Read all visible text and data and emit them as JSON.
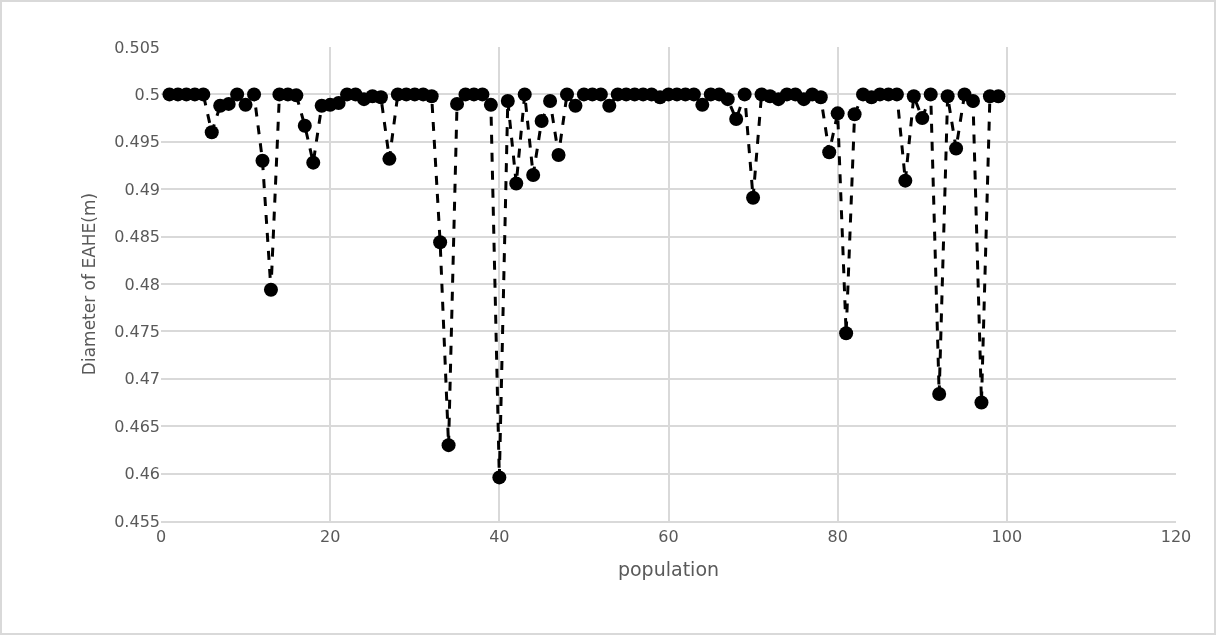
{
  "chart_data": {
    "type": "line",
    "xlabel": "population",
    "ylabel": "Diameter of EAHE(m)",
    "x": [
      1,
      2,
      3,
      4,
      5,
      6,
      7,
      8,
      9,
      10,
      11,
      12,
      13,
      14,
      15,
      16,
      17,
      18,
      19,
      20,
      21,
      22,
      23,
      24,
      25,
      26,
      27,
      28,
      29,
      30,
      31,
      32,
      33,
      34,
      35,
      36,
      37,
      38,
      39,
      40,
      41,
      42,
      43,
      44,
      45,
      46,
      47,
      48,
      49,
      50,
      51,
      52,
      53,
      54,
      55,
      56,
      57,
      58,
      59,
      60,
      61,
      62,
      63,
      64,
      65,
      66,
      67,
      68,
      69,
      70,
      71,
      72,
      73,
      74,
      75,
      76,
      77,
      78,
      79,
      80,
      81,
      82,
      83,
      84,
      85,
      86,
      87,
      88,
      89,
      90,
      91,
      92,
      93,
      94,
      95,
      96,
      97,
      98,
      99
    ],
    "series": [
      {
        "color": "#000000",
        "values": [
          0.5,
          0.5,
          0.5,
          0.5,
          0.5,
          0.496,
          0.4988,
          0.499,
          0.5,
          0.4989,
          0.5,
          0.493,
          0.4794,
          0.5,
          0.5,
          0.4999,
          0.4967,
          0.4928,
          0.4988,
          0.4989,
          0.4991,
          0.5,
          0.5,
          0.4995,
          0.4998,
          0.4997,
          0.4932,
          0.5,
          0.5,
          0.5,
          0.5,
          0.4998,
          0.4844,
          0.463,
          0.499,
          0.5,
          0.5,
          0.5,
          0.4989,
          0.4596,
          0.4993,
          0.4906,
          0.5,
          0.4915,
          0.4972,
          0.4993,
          0.4936,
          0.5,
          0.4988,
          0.5,
          0.5,
          0.5,
          0.4988,
          0.5,
          0.5,
          0.5,
          0.5,
          0.5,
          0.4997,
          0.5,
          0.5,
          0.5,
          0.5,
          0.4989,
          0.5,
          0.5,
          0.4995,
          0.4974,
          0.5,
          0.4891,
          0.5,
          0.4998,
          0.4995,
          0.5,
          0.5,
          0.4995,
          0.5,
          0.4997,
          0.4939,
          0.498,
          0.4748,
          0.4979,
          0.5,
          0.4997,
          0.5,
          0.5,
          0.5,
          0.4909,
          0.4998,
          0.4975,
          0.5,
          0.4684,
          0.4998,
          0.4943,
          0.5,
          0.4993,
          0.4675,
          0.4998,
          0.4998
        ]
      }
    ],
    "xlim": [
      0,
      120
    ],
    "xticks": [
      0,
      20,
      40,
      60,
      80,
      100,
      120
    ],
    "ylim": [
      0.455,
      0.505
    ],
    "yticks": [
      0.455,
      0.46,
      0.465,
      0.47,
      0.475,
      0.48,
      0.485,
      0.49,
      0.495,
      0.5,
      0.505
    ],
    "grid": true,
    "marker": "circle",
    "line_style": "dashed"
  }
}
